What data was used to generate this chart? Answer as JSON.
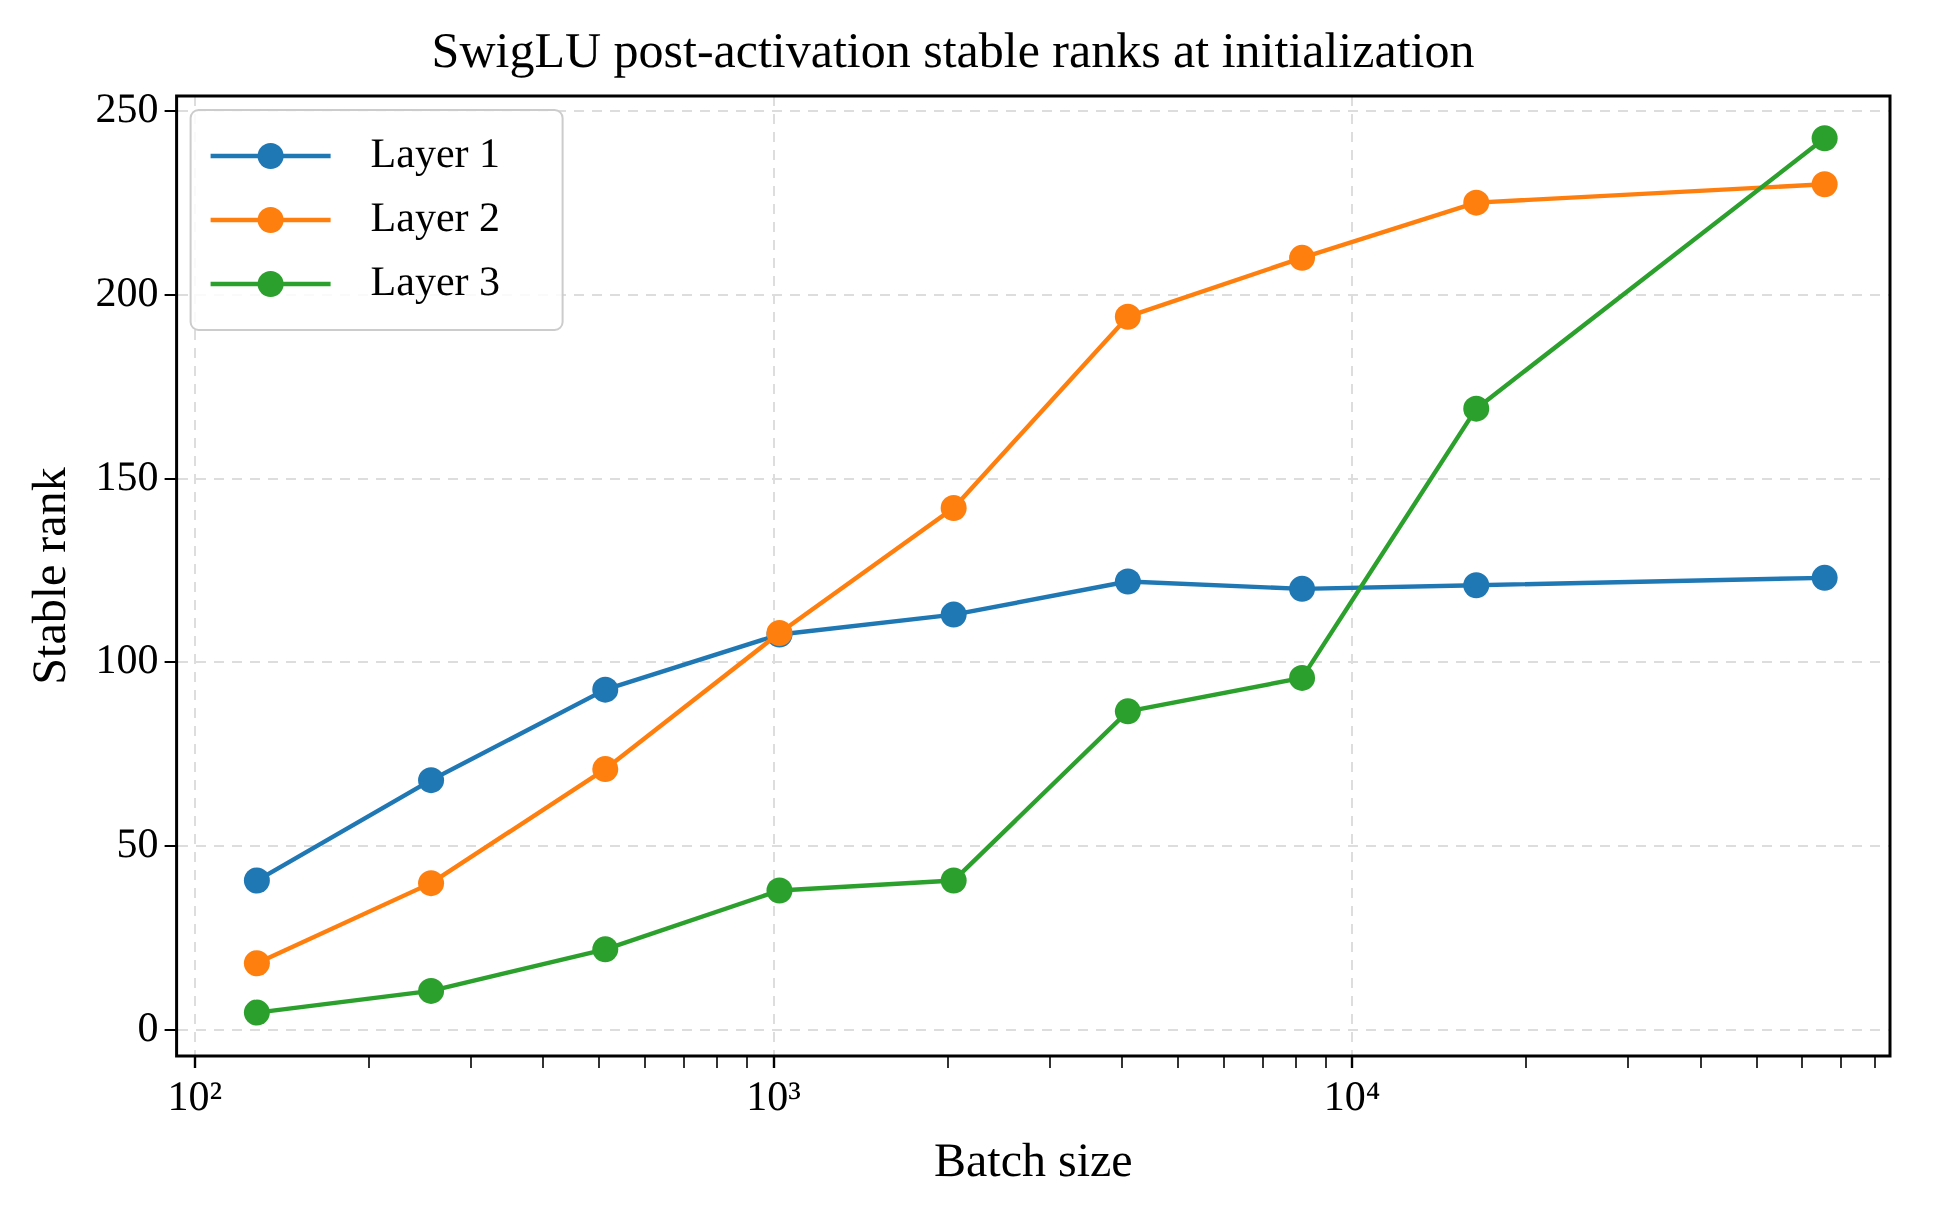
{
  "chart_data": {
    "type": "line",
    "title": "SwigLU post-activation stable ranks at initialization",
    "xlabel": "Batch size",
    "ylabel": "Stable rank",
    "x": [
      128,
      256,
      512,
      1024,
      2048,
      4096,
      8192,
      16384,
      65536
    ],
    "series": [
      {
        "name": "Layer 1",
        "color": "#1f77b4",
        "values": [
          40.7,
          68,
          92.6,
          107.6,
          113,
          122,
          120,
          121,
          123
        ]
      },
      {
        "name": "Layer 2",
        "color": "#ff7f0e",
        "values": [
          18.2,
          40,
          71,
          108,
          142,
          194,
          210,
          225,
          230
        ]
      },
      {
        "name": "Layer 3",
        "color": "#2ca02c",
        "values": [
          4.8,
          10.7,
          22,
          38,
          40.7,
          86.7,
          95.8,
          169,
          242.5
        ]
      }
    ],
    "log": "x",
    "xlim": [
      93,
      85000
    ],
    "xticks": [
      {
        "value": 100,
        "label": "10²"
      },
      {
        "value": 200,
        "label": null
      },
      {
        "value": 300,
        "label": null
      },
      {
        "value": 400,
        "label": null
      },
      {
        "value": 500,
        "label": null
      },
      {
        "value": 600,
        "label": null
      },
      {
        "value": 700,
        "label": null
      },
      {
        "value": 800,
        "label": null
      },
      {
        "value": 900,
        "label": null
      },
      {
        "value": 1000,
        "label": "10³"
      },
      {
        "value": 2000,
        "label": null
      },
      {
        "value": 3000,
        "label": null
      },
      {
        "value": 4000,
        "label": null
      },
      {
        "value": 5000,
        "label": null
      },
      {
        "value": 6000,
        "label": null
      },
      {
        "value": 7000,
        "label": null
      },
      {
        "value": 8000,
        "label": null
      },
      {
        "value": 9000,
        "label": null
      },
      {
        "value": 10000,
        "label": "10⁴"
      },
      {
        "value": 20000,
        "label": null
      },
      {
        "value": 30000,
        "label": null
      },
      {
        "value": 40000,
        "label": null
      },
      {
        "value": 50000,
        "label": null
      },
      {
        "value": 60000,
        "label": null
      },
      {
        "value": 70000,
        "label": null
      },
      {
        "value": 80000,
        "label": null
      }
    ],
    "ylim": [
      -7,
      254
    ],
    "yticks": [
      0,
      50,
      100,
      150,
      200,
      250
    ],
    "grid": true,
    "legend": "top left",
    "marker": "circle",
    "line_style": "solid"
  }
}
